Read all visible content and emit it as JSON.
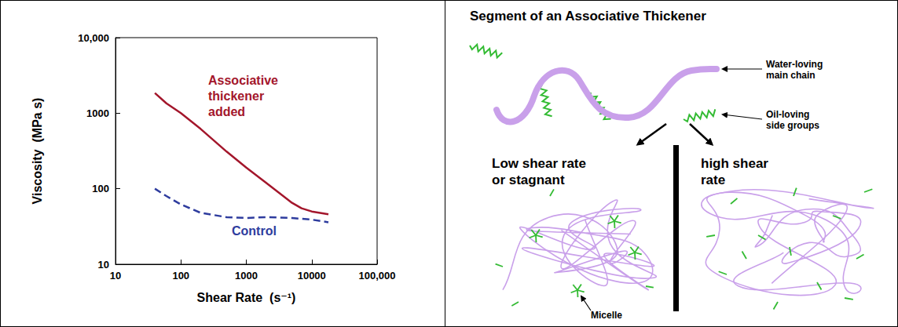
{
  "chart_data": {
    "type": "line",
    "log": true,
    "grid": false,
    "x_label": "Shear Rate  (s⁻¹)",
    "y_label": "Viscosity  (MPa s)",
    "xlim": [
      10,
      100000
    ],
    "ylim": [
      10,
      10000
    ],
    "xticks": [
      10,
      100,
      1000,
      10000,
      {
        "value": 100000,
        "label": "100,000"
      }
    ],
    "yticks": [
      10,
      100,
      1000,
      {
        "value": 10000,
        "label": "10,000"
      }
    ],
    "x": [
      40,
      60,
      100,
      200,
      500,
      1000,
      2000,
      5000,
      7000,
      10000,
      18000
    ],
    "series": [
      {
        "name": "Associative thickener added",
        "color": "#a3162b",
        "line_style": "solid",
        "marker": "none",
        "values": [
          1850,
          1350,
          1000,
          620,
          310,
          190,
          120,
          65,
          55,
          50,
          46
        ]
      },
      {
        "name": "Control",
        "color": "#2e3c9e",
        "line_style": "dashed",
        "marker": "none",
        "values": [
          100,
          80,
          62,
          48,
          42,
          41,
          42,
          41,
          40,
          39,
          36
        ]
      }
    ]
  },
  "diagram": {
    "title": "Segment of an Associative Thickener",
    "main_chain_label": "Water-loving main chain",
    "side_group_label": "Oil-loving side groups",
    "panels": [
      {
        "label": "Low shear rate or stagnant",
        "callout": "Micelle"
      },
      {
        "label": "high shear rate"
      }
    ]
  }
}
